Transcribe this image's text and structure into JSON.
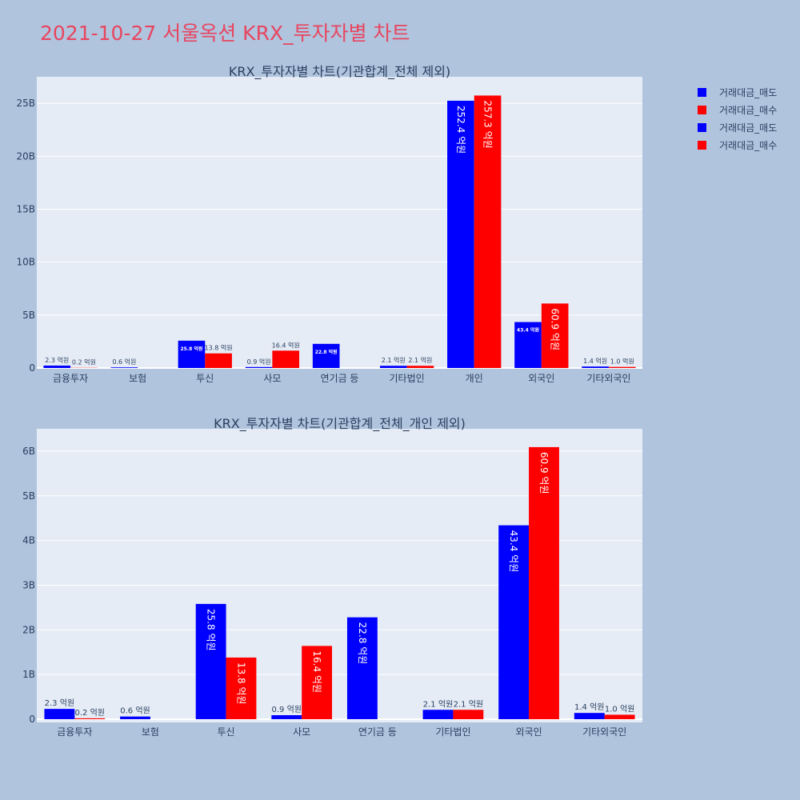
{
  "title": "2021-10-27 서울옥션 KRX_투자자별 차트",
  "colors": {
    "sell": "#0000ff",
    "buy": "#ff0000",
    "plot_bg": "#e5ecf6",
    "paper_bg": "#b0c4de",
    "title": "#e8455f"
  },
  "legend": [
    {
      "name": "거래대금_매도",
      "color": "#0000ff"
    },
    {
      "name": "거래대금_매수",
      "color": "#ff0000"
    },
    {
      "name": "거래대금_매도",
      "color": "#0000ff"
    },
    {
      "name": "거래대금_매수",
      "color": "#ff0000"
    }
  ],
  "chart_data": [
    {
      "type": "bar",
      "title": "KRX_투자자별 차트(기관합계_전체 제외)",
      "categories": [
        "금융투자",
        "보험",
        "투신",
        "사모",
        "연기금 등",
        "기타법인",
        "개인",
        "외국인",
        "기타외국인"
      ],
      "ylim": [
        0,
        27500000000
      ],
      "yticks": [
        0,
        5000000000,
        10000000000,
        15000000000,
        20000000000,
        25000000000
      ],
      "ytick_labels": [
        "0",
        "5B",
        "10B",
        "15B",
        "20B",
        "25B"
      ],
      "grid": true,
      "series": [
        {
          "name": "거래대금_매도",
          "values": [
            230000000,
            60000000,
            2580000000,
            90000000,
            2280000000,
            210000000,
            25240000000,
            4340000000,
            140000000
          ],
          "labels": [
            "2.3 억원",
            "0.6 억원",
            "25.8 억원",
            "0.9 억원",
            "22.8 억원",
            "2.1 억원",
            "252.4 억원",
            "43.4 억원",
            "1.4 억원"
          ]
        },
        {
          "name": "거래대금_매수",
          "values": [
            20000000,
            0,
            1380000000,
            1640000000,
            0,
            210000000,
            25730000000,
            6090000000,
            100000000
          ],
          "labels": [
            "0.2 억원",
            "",
            "13.8 억원",
            "16.4 억원",
            "",
            "2.1 억원",
            "257.3 억원",
            "60.9 억원",
            "1.0 억원"
          ]
        }
      ]
    },
    {
      "type": "bar",
      "title": "KRX_투자자별 차트(기관합계_전체_개인 제외)",
      "categories": [
        "금융투자",
        "보험",
        "투신",
        "사모",
        "연기금 등",
        "기타법인",
        "외국인",
        "기타외국인"
      ],
      "ylim": [
        0,
        6500000000
      ],
      "yticks": [
        0,
        1000000000,
        2000000000,
        3000000000,
        4000000000,
        5000000000,
        6000000000
      ],
      "ytick_labels": [
        "0",
        "1B",
        "2B",
        "3B",
        "4B",
        "5B",
        "6B"
      ],
      "grid": true,
      "series": [
        {
          "name": "거래대금_매도",
          "values": [
            230000000,
            60000000,
            2580000000,
            90000000,
            2280000000,
            210000000,
            4340000000,
            140000000
          ],
          "labels": [
            "2.3 억원",
            "0.6 억원",
            "25.8 억원",
            "0.9 억원",
            "22.8 억원",
            "2.1 억원",
            "43.4 억원",
            "1.4 억원"
          ]
        },
        {
          "name": "거래대금_매수",
          "values": [
            20000000,
            0,
            1380000000,
            1640000000,
            0,
            210000000,
            6090000000,
            100000000
          ],
          "labels": [
            "0.2 억원",
            "",
            "13.8 억원",
            "16.4 억원",
            "",
            "2.1 억원",
            "60.9 억원",
            "1.0 억원"
          ]
        }
      ]
    }
  ]
}
